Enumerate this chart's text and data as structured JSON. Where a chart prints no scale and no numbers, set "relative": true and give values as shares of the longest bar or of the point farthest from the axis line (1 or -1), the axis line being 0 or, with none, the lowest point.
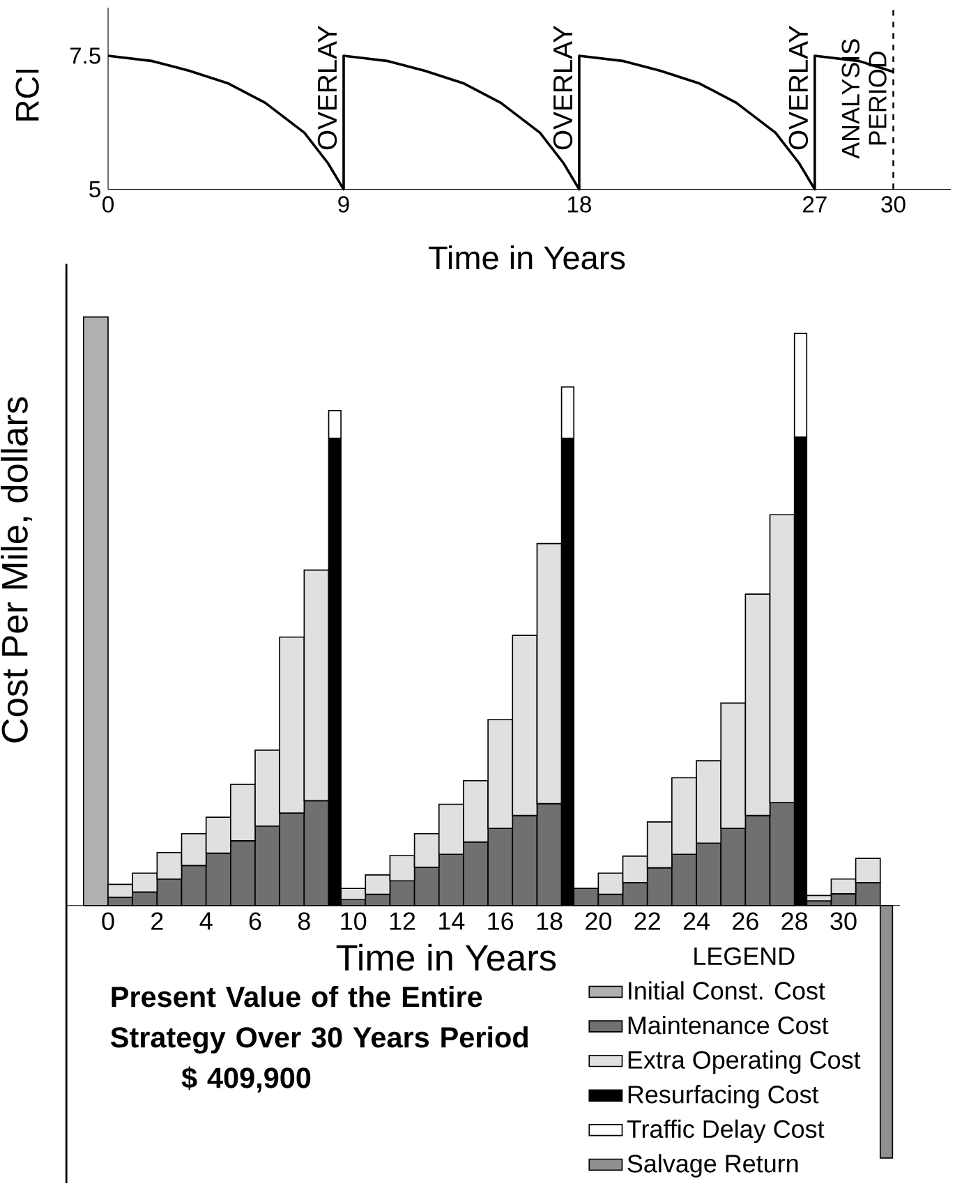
{
  "chart_data": [
    {
      "type": "line",
      "xlabel": "Time in Years",
      "ylabel": "RCI",
      "color": "#000000",
      "marker": "none",
      "x": [
        0,
        1.7,
        3.1,
        4.6,
        6,
        7.5,
        8.4,
        9,
        9,
        10.7,
        12.1,
        13.6,
        15,
        16.5,
        17.4,
        18,
        18,
        19.7,
        21.1,
        22.6,
        24,
        25.5,
        26.4,
        27,
        27,
        28.7,
        30
      ],
      "values": [
        7.5,
        7.4,
        7.22,
        6.98,
        6.62,
        6.06,
        5.49,
        5,
        7.5,
        7.4,
        7.22,
        6.98,
        6.62,
        6.06,
        5.49,
        5,
        7.5,
        7.4,
        7.22,
        6.98,
        6.62,
        6.06,
        5.49,
        5,
        7.5,
        7.4,
        7.2
      ],
      "xlim": [
        0,
        32.2
      ],
      "ylim": [
        5,
        8.4
      ],
      "xticks": [
        0,
        9,
        18,
        27,
        30
      ],
      "yticks": [
        5,
        7.5
      ],
      "ref_lines": [
        {
          "axis": "x",
          "value": 30,
          "label": "ANALYSIS PERIOD",
          "line_style": "dashed"
        }
      ],
      "annotations": [
        {
          "text": "OVERLAY",
          "x": 9,
          "y": 6.9
        },
        {
          "text": "OVERLAY",
          "x": 18,
          "y": 6.9
        },
        {
          "text": "OVERLAY",
          "x": 27,
          "y": 6.9
        }
      ]
    },
    {
      "type": "bar",
      "stacked": true,
      "relative": true,
      "xlabel": "Time in Years",
      "ylabel": "Cost Per Mile, dollars",
      "xlim": [
        -1.7,
        32.3
      ],
      "xticks": [
        0,
        2,
        4,
        6,
        8,
        10,
        12,
        14,
        16,
        18,
        20,
        22,
        24,
        26,
        28,
        30
      ],
      "legend": "bottom right",
      "legend_title": "LEGEND",
      "annotations": [
        "Present Value of the Entire Strategy Over 30 Years Period",
        "$ 409,900"
      ],
      "x": [
        -0.5,
        0.5,
        1.5,
        2.5,
        3.5,
        4.5,
        5.5,
        6.5,
        7.5,
        8.5,
        9.25,
        10,
        11,
        12,
        13,
        14,
        15,
        16,
        17,
        18,
        18.75,
        19.5,
        20.5,
        21.5,
        22.5,
        23.5,
        24.5,
        25.5,
        26.5,
        27.5,
        28.25,
        29,
        30,
        31,
        31.75
      ],
      "series": [
        {
          "name": "Initial Const. Cost",
          "color": "#b0b0b0",
          "values": [
            1,
            null,
            null,
            null,
            null,
            null,
            null,
            null,
            null,
            null,
            null,
            null,
            null,
            null,
            null,
            null,
            null,
            null,
            null,
            null,
            null,
            null,
            null,
            null,
            null,
            null,
            null,
            null,
            null,
            null,
            null,
            null,
            null,
            null,
            null
          ]
        },
        {
          "name": "Maintenance Cost",
          "color": "#707070",
          "values": [
            null,
            0.014,
            0.023,
            0.045,
            0.068,
            0.089,
            0.11,
            0.135,
            0.157,
            0.178,
            null,
            0.01,
            0.019,
            0.042,
            0.065,
            0.087,
            0.108,
            0.131,
            0.153,
            0.173,
            null,
            0.029,
            0.019,
            0.039,
            0.064,
            0.087,
            0.106,
            0.131,
            0.153,
            0.175,
            null,
            0.008,
            0.02,
            0.039,
            null
          ]
        },
        {
          "name": "Extra Operating Cost",
          "color": "#e0e0e0",
          "values": [
            null,
            0.022,
            0.032,
            0.045,
            0.054,
            0.061,
            0.096,
            0.129,
            0.299,
            0.392,
            null,
            0.019,
            0.033,
            0.043,
            0.057,
            0.085,
            0.104,
            0.185,
            0.306,
            0.442,
            null,
            0,
            0.036,
            0.045,
            0.078,
            0.13,
            0.14,
            0.213,
            0.376,
            0.489,
            null,
            0.009,
            0.025,
            0.041,
            null
          ]
        },
        {
          "name": "Resurfacing Cost",
          "color": "#000000",
          "values": [
            null,
            null,
            null,
            null,
            null,
            null,
            null,
            null,
            null,
            null,
            0.794,
            null,
            null,
            null,
            null,
            null,
            null,
            null,
            null,
            null,
            0.794,
            null,
            null,
            null,
            null,
            null,
            null,
            null,
            null,
            null,
            0.796,
            null,
            null,
            null,
            null
          ]
        },
        {
          "name": "Traffic Delay Cost",
          "color": "#ffffff",
          "values": [
            null,
            null,
            null,
            null,
            null,
            null,
            null,
            null,
            null,
            null,
            0.047,
            null,
            null,
            null,
            null,
            null,
            null,
            null,
            null,
            null,
            0.087,
            null,
            null,
            null,
            null,
            null,
            null,
            null,
            null,
            null,
            0.176,
            null,
            null,
            null,
            null
          ]
        },
        {
          "name": "Salvage Return",
          "color": "#909090",
          "values": [
            null,
            null,
            null,
            null,
            null,
            null,
            null,
            null,
            null,
            null,
            null,
            null,
            null,
            null,
            null,
            null,
            null,
            null,
            null,
            null,
            null,
            null,
            null,
            null,
            null,
            null,
            null,
            null,
            null,
            null,
            null,
            null,
            null,
            null,
            -0.429
          ]
        }
      ]
    }
  ]
}
